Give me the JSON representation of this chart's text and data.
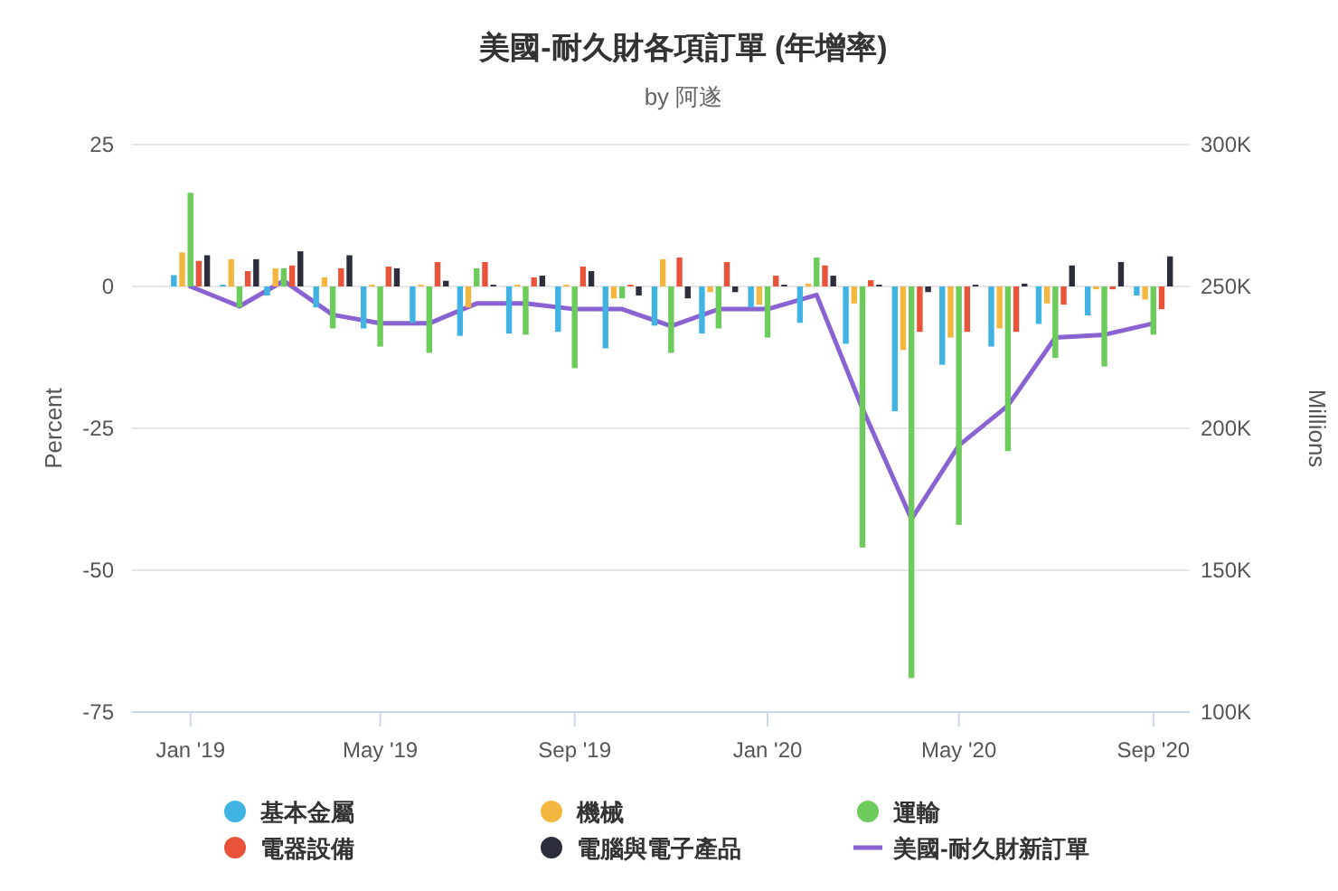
{
  "chart_data": {
    "type": "bar",
    "title": "美國-耐久財各項訂單 (年增率)",
    "subtitle": "by 阿遂",
    "ylabel": "Percent",
    "y2label": "Millions",
    "x": [
      "2019-01",
      "2019-02",
      "2019-03",
      "2019-04",
      "2019-05",
      "2019-06",
      "2019-07",
      "2019-08",
      "2019-09",
      "2019-10",
      "2019-11",
      "2019-12",
      "2020-01",
      "2020-02",
      "2020-03",
      "2020-04",
      "2020-05",
      "2020-06",
      "2020-07",
      "2020-08",
      "2020-09"
    ],
    "xlim": [
      "2018-11-25",
      "2020-09-24"
    ],
    "xticks": [
      {
        "value": "2019-01",
        "label": "Jan '19"
      },
      {
        "value": "2019-05",
        "label": "May '19"
      },
      {
        "value": "2019-09",
        "label": "Sep '19"
      },
      {
        "value": "2020-01",
        "label": "Jan '20"
      },
      {
        "value": "2020-05",
        "label": "May '20"
      },
      {
        "value": "2020-09",
        "label": "Sep '20"
      }
    ],
    "ylim": [
      -75,
      25
    ],
    "yticks": [
      -75,
      -50,
      -25,
      0,
      25
    ],
    "y2lim": [
      100000,
      300000
    ],
    "y2ticks": [
      {
        "value": 100000,
        "label": "100K"
      },
      {
        "value": 150000,
        "label": "150K"
      },
      {
        "value": 200000,
        "label": "200K"
      },
      {
        "value": 250000,
        "label": "250K"
      },
      {
        "value": 300000,
        "label": "300K"
      }
    ],
    "series": [
      {
        "name": "基本金屬",
        "color": "#41b3e3",
        "values": [
          2,
          0.3,
          -1.6,
          -3.7,
          -7.4,
          -6.4,
          -8.7,
          -8.3,
          -8,
          -10.9,
          -6.9,
          -8.3,
          -3.7,
          -6.4,
          -10.1,
          -22,
          -13.8,
          -10.6,
          -6.6,
          -5.1,
          -1.6
        ]
      },
      {
        "name": "機械",
        "color": "#f3b63f",
        "values": [
          6,
          4.8,
          3.2,
          1.6,
          0.3,
          0.3,
          -3.7,
          0.3,
          0.3,
          -2.1,
          4.8,
          -1,
          -3.2,
          0.5,
          -3,
          -11.2,
          -9,
          -7.4,
          -3,
          -0.5,
          -2.3
        ]
      },
      {
        "name": "運輸",
        "color": "#6ccb5a",
        "values": [
          16.5,
          -3.7,
          3.2,
          -7.4,
          -10.6,
          -11.7,
          3.2,
          -8.5,
          -14.4,
          -2.1,
          -11.7,
          -7.4,
          -9,
          5.1,
          -46,
          -69,
          -42,
          -29,
          -12.6,
          -14.1,
          -8.5
        ]
      },
      {
        "name": "電器設備",
        "color": "#e8533a",
        "values": [
          4.5,
          2.7,
          3.7,
          3.2,
          3.5,
          4.3,
          4.3,
          1.6,
          3.5,
          0.3,
          5.1,
          4.3,
          1.9,
          3.7,
          1.1,
          -8,
          -8,
          -8,
          -3.2,
          -0.5,
          -4
        ]
      },
      {
        "name": "電腦與電子產品",
        "color": "#2c2f3b",
        "values": [
          5.5,
          4.8,
          6.2,
          5.5,
          3.2,
          1,
          0.3,
          1.9,
          2.7,
          -1.6,
          -2.1,
          -1,
          0.3,
          1.9,
          0.3,
          -1,
          0.3,
          0.5,
          3.7,
          4.3,
          5.3
        ]
      },
      {
        "name": "美國-耐久財新訂單",
        "type": "line",
        "axis": "y2",
        "color": "#8a63d2",
        "values": [
          250000,
          243000,
          252000,
          240000,
          237000,
          237000,
          244000,
          244000,
          242000,
          242000,
          236000,
          242000,
          242000,
          247000,
          207000,
          168000,
          194000,
          208000,
          232000,
          233000,
          237000
        ]
      }
    ],
    "grid": "y",
    "legend": "bottom",
    "marker": "none",
    "line_style": "solid"
  }
}
